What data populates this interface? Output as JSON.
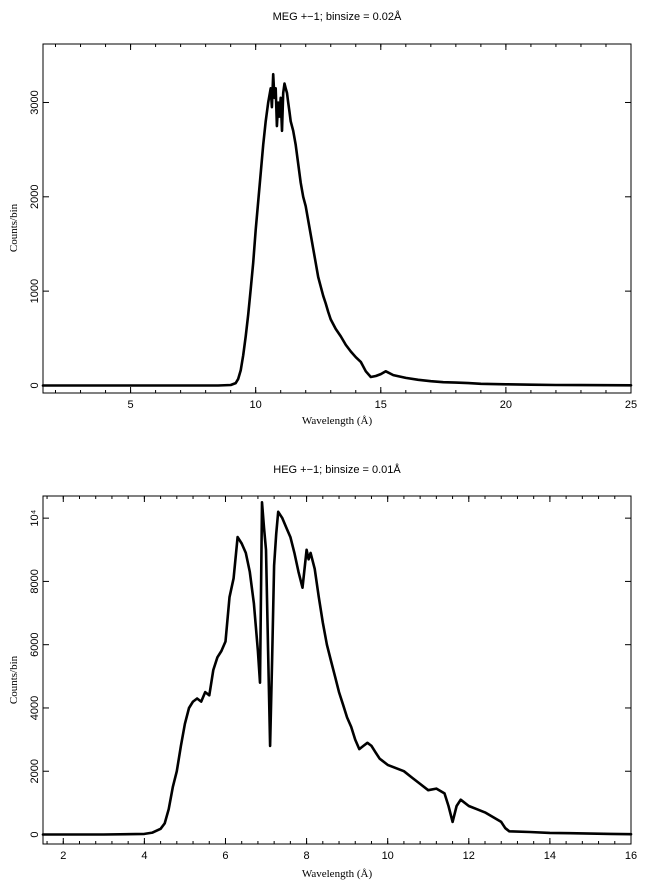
{
  "chart_data": [
    {
      "type": "line",
      "title": "MEG +−1; binsize = 0.02Å",
      "xlabel": "Wavelength (Å)",
      "ylabel": "Counts/bin",
      "xlim": [
        1.5,
        25
      ],
      "ylim": [
        -80,
        3620
      ],
      "xticks": [
        5,
        10,
        15,
        20,
        25
      ],
      "xtick_labels": [
        "5",
        "10",
        "15",
        "20",
        "25"
      ],
      "yticks": [
        0,
        1000,
        2000,
        3000
      ],
      "ytick_labels": [
        "0",
        "1000",
        "2000",
        "3000"
      ],
      "grid": false,
      "legend": "none",
      "series": [
        {
          "x": [
            1.5,
            3,
            5,
            7,
            8.5,
            9.0,
            9.2,
            9.3,
            9.4,
            9.5,
            9.6,
            9.7,
            9.8,
            9.9,
            10.0,
            10.1,
            10.2,
            10.3,
            10.4,
            10.5,
            10.6,
            10.65,
            10.7,
            10.75,
            10.8,
            10.85,
            10.9,
            10.95,
            11.0,
            11.05,
            11.1,
            11.15,
            11.2,
            11.25,
            11.3,
            11.35,
            11.4,
            11.5,
            11.6,
            11.7,
            11.8,
            11.9,
            12.0,
            12.1,
            12.2,
            12.3,
            12.4,
            12.5,
            12.6,
            12.7,
            12.8,
            12.9,
            13.0,
            13.2,
            13.4,
            13.6,
            13.8,
            14.0,
            14.2,
            14.4,
            14.6,
            14.8,
            15.0,
            15.2,
            15.5,
            16.0,
            16.5,
            17.0,
            17.5,
            18.0,
            18.5,
            19.0,
            20.0,
            21.0,
            22.0,
            23.0,
            24.0,
            25.0
          ],
          "y": [
            0,
            0,
            0,
            0,
            0,
            5,
            25,
            70,
            160,
            320,
            520,
            750,
            1020,
            1300,
            1650,
            1950,
            2250,
            2550,
            2800,
            3000,
            3150,
            2950,
            3300,
            3050,
            3150,
            2750,
            3000,
            2850,
            3050,
            2700,
            3100,
            3200,
            3150,
            3100,
            3000,
            2900,
            2800,
            2700,
            2550,
            2350,
            2150,
            2000,
            1900,
            1750,
            1600,
            1450,
            1300,
            1150,
            1050,
            950,
            870,
            780,
            700,
            600,
            520,
            430,
            360,
            300,
            250,
            150,
            90,
            100,
            120,
            150,
            110,
            80,
            60,
            45,
            35,
            30,
            25,
            18,
            12,
            8,
            5,
            4,
            3,
            2
          ]
        }
      ]
    },
    {
      "type": "line",
      "title": "HEG +−1; binsize = 0.01Å",
      "xlabel": "Wavelength (Å)",
      "ylabel": "Counts/bin",
      "xlim": [
        1.5,
        16
      ],
      "ylim": [
        -300,
        10700
      ],
      "xticks": [
        2,
        4,
        6,
        8,
        10,
        12,
        14,
        16
      ],
      "xtick_labels": [
        "2",
        "4",
        "6",
        "8",
        "10",
        "12",
        "14",
        "16"
      ],
      "yticks": [
        0,
        2000,
        4000,
        6000,
        8000,
        10000
      ],
      "ytick_labels": [
        "0",
        "2000",
        "4000",
        "6000",
        "8000",
        "10⁴"
      ],
      "grid": false,
      "legend": "none",
      "series": [
        {
          "x": [
            1.5,
            3,
            4.0,
            4.2,
            4.4,
            4.5,
            4.6,
            4.7,
            4.8,
            4.9,
            5.0,
            5.1,
            5.2,
            5.3,
            5.4,
            5.5,
            5.6,
            5.7,
            5.8,
            5.9,
            6.0,
            6.1,
            6.2,
            6.3,
            6.4,
            6.5,
            6.6,
            6.7,
            6.8,
            6.85,
            6.9,
            6.95,
            7.0,
            7.05,
            7.1,
            7.15,
            7.2,
            7.25,
            7.3,
            7.4,
            7.5,
            7.6,
            7.7,
            7.8,
            7.9,
            8.0,
            8.05,
            8.1,
            8.2,
            8.3,
            8.4,
            8.5,
            8.6,
            8.7,
            8.8,
            8.9,
            9.0,
            9.1,
            9.2,
            9.3,
            9.4,
            9.5,
            9.6,
            9.7,
            9.8,
            10.0,
            10.2,
            10.4,
            10.6,
            10.8,
            11.0,
            11.2,
            11.4,
            11.5,
            11.6,
            11.7,
            11.8,
            12.0,
            12.2,
            12.4,
            12.6,
            12.8,
            12.9,
            13.0,
            13.5,
            14.0,
            14.5,
            15.0,
            15.5,
            16.0
          ],
          "y": [
            0,
            0,
            20,
            60,
            180,
            350,
            800,
            1500,
            2000,
            2800,
            3500,
            4000,
            4200,
            4300,
            4200,
            4500,
            4400,
            5200,
            5600,
            5800,
            6100,
            7500,
            8100,
            9400,
            9200,
            8900,
            8300,
            7300,
            5800,
            4800,
            10500,
            9700,
            9000,
            5800,
            2800,
            5500,
            8500,
            9500,
            10200,
            10000,
            9700,
            9400,
            8900,
            8300,
            7800,
            9000,
            8700,
            8900,
            8400,
            7500,
            6700,
            6000,
            5500,
            5000,
            4500,
            4100,
            3700,
            3400,
            3000,
            2700,
            2800,
            2900,
            2800,
            2600,
            2400,
            2200,
            2100,
            2000,
            1800,
            1600,
            1400,
            1450,
            1300,
            900,
            400,
            900,
            1100,
            900,
            800,
            700,
            550,
            400,
            200,
            100,
            80,
            50,
            40,
            30,
            20,
            10
          ]
        }
      ]
    }
  ]
}
